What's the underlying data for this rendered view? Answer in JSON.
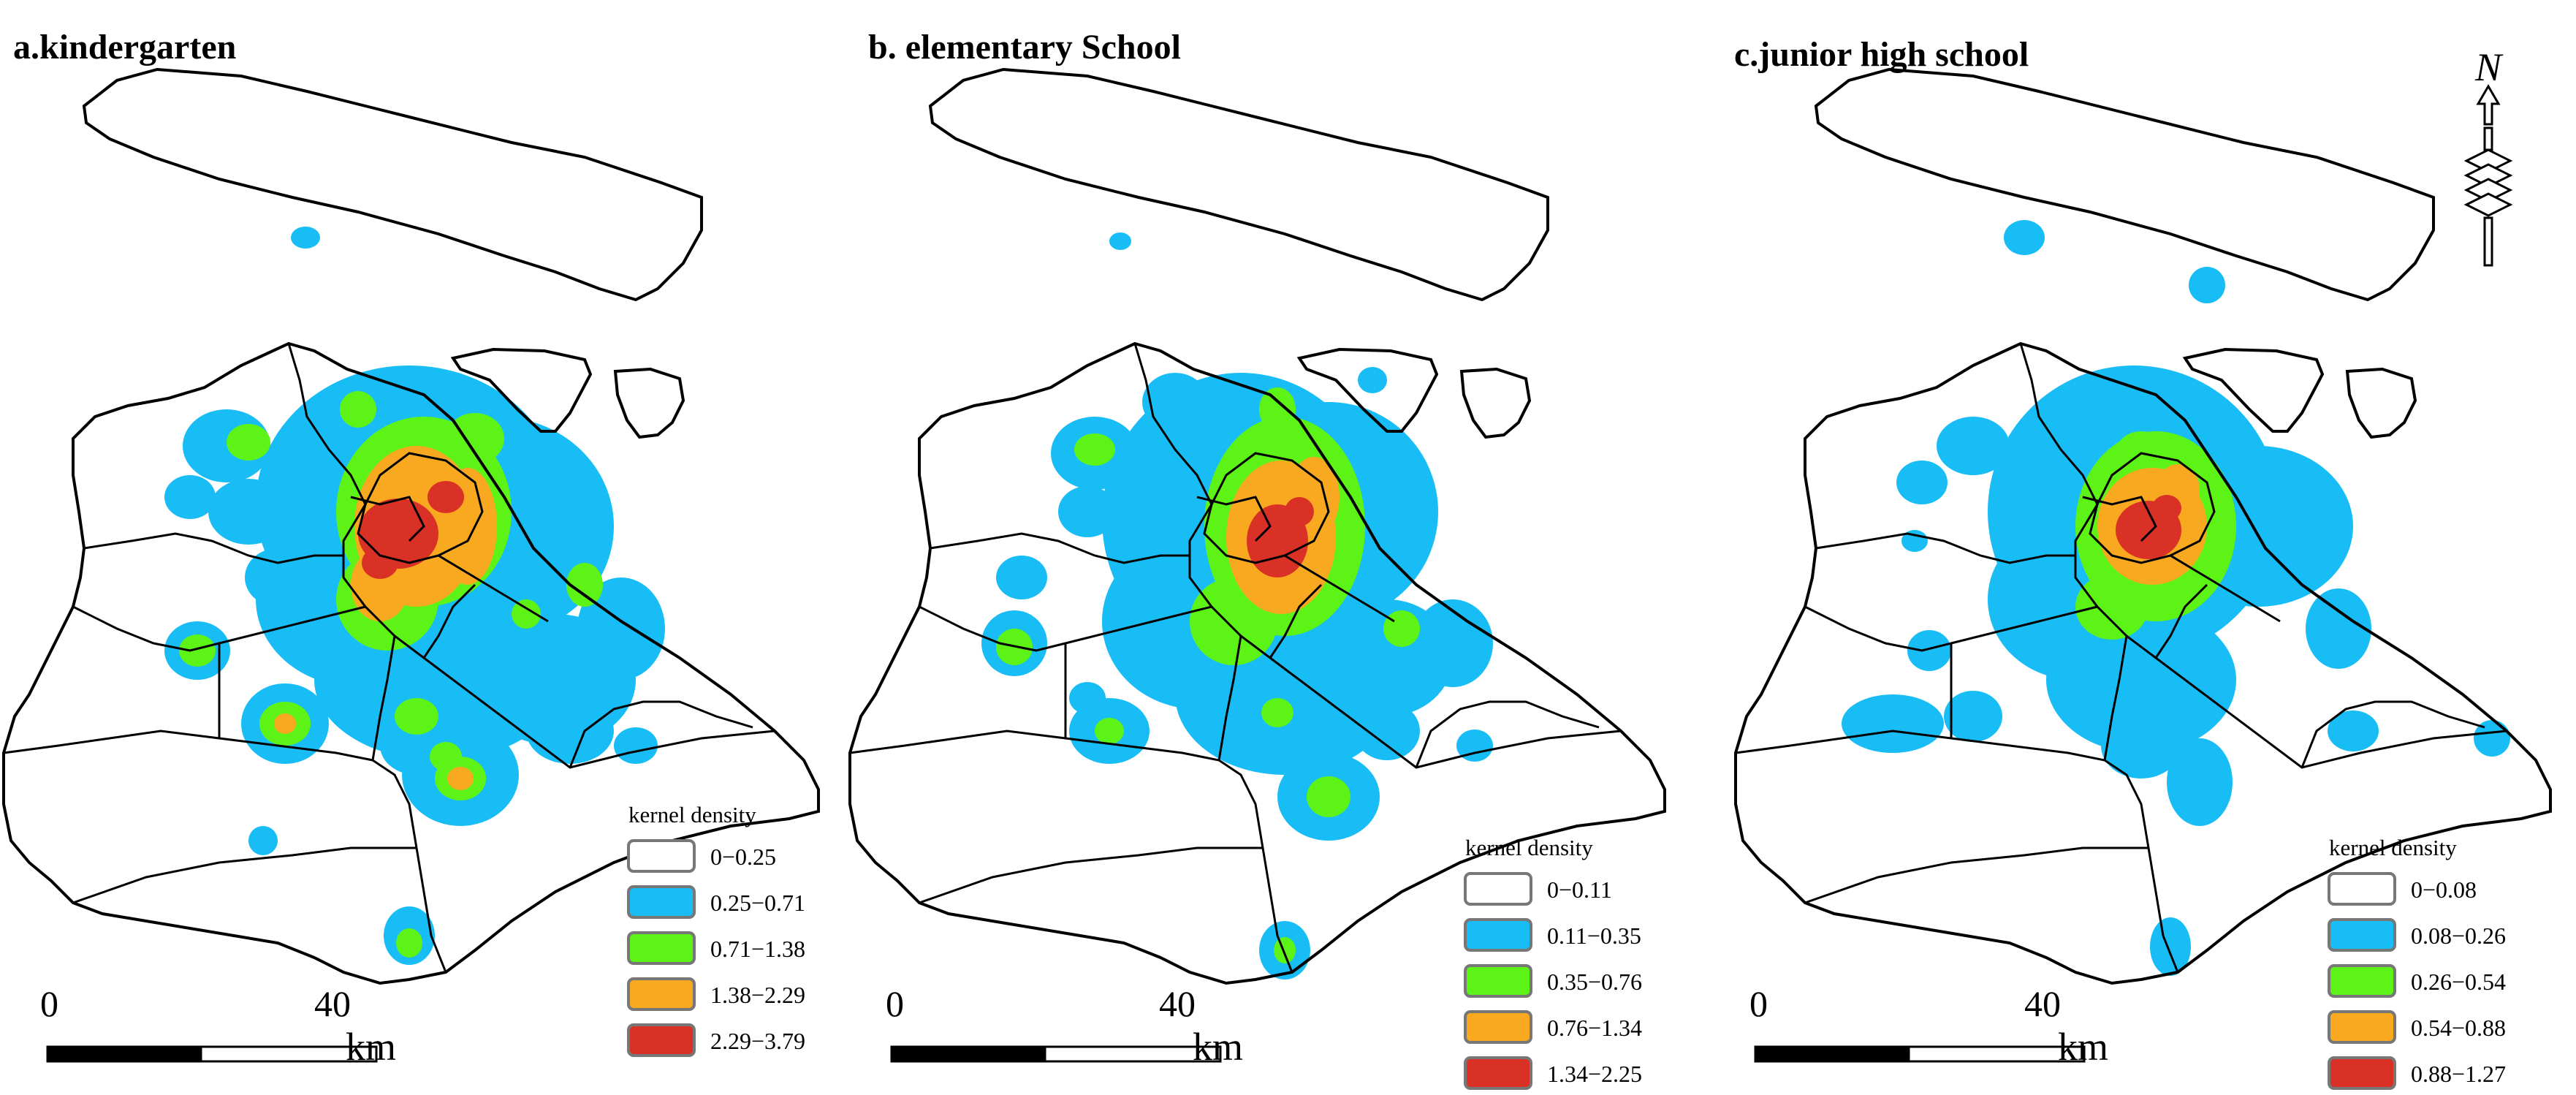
{
  "panels": [
    {
      "title": "a.kindergarten",
      "legend": {
        "title": "kernel  density",
        "classes": [
          {
            "label": "0−0.25",
            "color": "#ffffff"
          },
          {
            "label": "0.25−0.71",
            "color": "#19bdf6"
          },
          {
            "label": "0.71−1.38",
            "color": "#5ef317"
          },
          {
            "label": "1.38−2.29",
            "color": "#f8a91f"
          },
          {
            "label": "2.29−3.79",
            "color": "#da3127"
          }
        ]
      },
      "scale_bar": {
        "start_label": "0",
        "mid_label": "40",
        "unit": "km"
      }
    },
    {
      "title": "b. elementary School",
      "legend": {
        "title": "kernel  density",
        "classes": [
          {
            "label": "0−0.11",
            "color": "#ffffff"
          },
          {
            "label": "0.11−0.35",
            "color": "#19bdf6"
          },
          {
            "label": "0.35−0.76",
            "color": "#5ef317"
          },
          {
            "label": "0.76−1.34",
            "color": "#f8a91f"
          },
          {
            "label": "1.34−2.25",
            "color": "#da3127"
          }
        ]
      },
      "scale_bar": {
        "start_label": "0",
        "mid_label": "40",
        "unit": "km"
      }
    },
    {
      "title": "c.junior high school",
      "legend": {
        "title": "kernel density",
        "classes": [
          {
            "label": "0−0.08",
            "color": "#ffffff"
          },
          {
            "label": "0.08−0.26",
            "color": "#19bdf6"
          },
          {
            "label": "0.26−0.54",
            "color": "#5ef317"
          },
          {
            "label": "0.54−0.88",
            "color": "#f8a91f"
          },
          {
            "label": "0.88−1.27",
            "color": "#da3127"
          }
        ]
      },
      "scale_bar": {
        "start_label": "0",
        "mid_label": "40",
        "unit": "km"
      }
    }
  ],
  "north_arrow": {
    "label": "N"
  },
  "colors": {
    "outline": "#000000",
    "low": "#19bdf6",
    "mid": "#5ef317",
    "high": "#f8a91f",
    "peak": "#da3127"
  }
}
